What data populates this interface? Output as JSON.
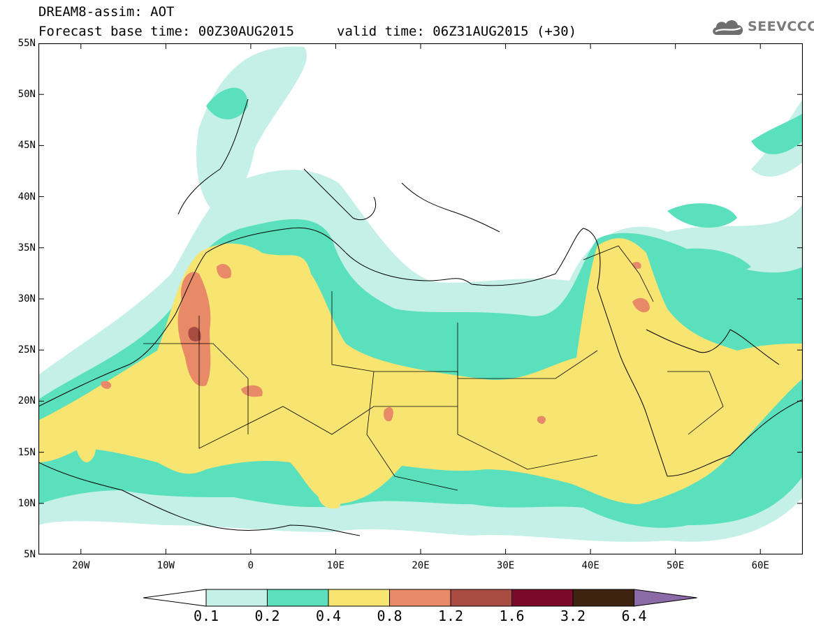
{
  "header": {
    "title": "DREAM8-assim: AOT",
    "base_time": "Forecast base time: 00Z30AUG2015",
    "valid_time": "valid time: 06Z31AUG2015 (+30)",
    "logo_text": "SEEVCCC"
  },
  "map": {
    "lat_labels": [
      "55N",
      "50N",
      "45N",
      "40N",
      "35N",
      "30N",
      "25N",
      "20N",
      "15N",
      "10N",
      "5N"
    ],
    "lat_values": [
      55,
      50,
      45,
      40,
      35,
      30,
      25,
      20,
      15,
      10,
      5
    ],
    "lon_labels": [
      "20W",
      "10W",
      "0",
      "10E",
      "20E",
      "30E",
      "40E",
      "50E",
      "60E"
    ],
    "lon_values": [
      -20,
      -10,
      0,
      10,
      20,
      30,
      40,
      50,
      60
    ],
    "extent": {
      "lon": [
        -25,
        65
      ],
      "lat": [
        5,
        55
      ]
    }
  },
  "legend": {
    "labels": [
      "0.1",
      "0.2",
      "0.4",
      "0.8",
      "1.2",
      "1.6",
      "3.2",
      "6.4"
    ],
    "colors": [
      "#ffffff",
      "#c4f0e8",
      "#5ae0bc",
      "#f8e470",
      "#e88a68",
      "#a84c42",
      "#7a0a2a",
      "#3e2410",
      "#8c6aa8"
    ]
  }
}
